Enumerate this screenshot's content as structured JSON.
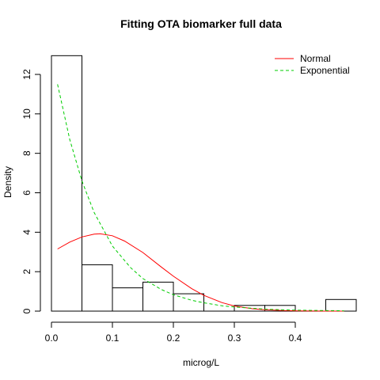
{
  "chart_data": {
    "type": "histogram",
    "title": "Fitting OTA biomarker full data",
    "xlabel": "microg/L",
    "ylabel": "Density",
    "xlim": [
      0.0,
      0.5
    ],
    "ylim": [
      0,
      13
    ],
    "grid": false,
    "x_ticks": [
      "0.0",
      "0.1",
      "0.2",
      "0.3",
      "0.4"
    ],
    "x_tick_values": [
      0.0,
      0.1,
      0.2,
      0.3,
      0.4
    ],
    "y_ticks": [
      "0",
      "2",
      "4",
      "6",
      "8",
      "10",
      "12"
    ],
    "y_tick_values": [
      0,
      2,
      4,
      6,
      8,
      10,
      12
    ],
    "bins": [
      {
        "x0": 0.0,
        "x1": 0.05,
        "density": 12.95
      },
      {
        "x0": 0.05,
        "x1": 0.1,
        "density": 2.35
      },
      {
        "x0": 0.1,
        "x1": 0.15,
        "density": 1.18
      },
      {
        "x0": 0.15,
        "x1": 0.2,
        "density": 1.47
      },
      {
        "x0": 0.2,
        "x1": 0.25,
        "density": 0.88
      },
      {
        "x0": 0.25,
        "x1": 0.3,
        "density": 0.0
      },
      {
        "x0": 0.3,
        "x1": 0.35,
        "density": 0.29
      },
      {
        "x0": 0.35,
        "x1": 0.4,
        "density": 0.29
      },
      {
        "x0": 0.4,
        "x1": 0.45,
        "density": 0.0
      },
      {
        "x0": 0.45,
        "x1": 0.5,
        "density": 0.59
      }
    ],
    "series": [
      {
        "name": "Normal",
        "color": "#ff0000",
        "dash": "solid",
        "x": [
          0.01,
          0.03,
          0.05,
          0.07,
          0.08,
          0.1,
          0.12,
          0.15,
          0.18,
          0.2,
          0.23,
          0.25,
          0.28,
          0.3,
          0.33,
          0.35,
          0.38,
          0.4,
          0.43,
          0.45,
          0.48
        ],
        "values": [
          3.15,
          3.5,
          3.76,
          3.9,
          3.92,
          3.82,
          3.55,
          2.97,
          2.24,
          1.77,
          1.14,
          0.8,
          0.43,
          0.26,
          0.12,
          0.07,
          0.03,
          0.015,
          0.005,
          0.002,
          0.0005
        ]
      },
      {
        "name": "Exponential",
        "color": "#00cc00",
        "dash": "dashed",
        "x": [
          0.01,
          0.03,
          0.05,
          0.07,
          0.1,
          0.13,
          0.15,
          0.18,
          0.2,
          0.23,
          0.25,
          0.28,
          0.3,
          0.35,
          0.4,
          0.45,
          0.48
        ],
        "values": [
          11.5,
          8.7,
          6.6,
          5.0,
          3.3,
          2.2,
          1.65,
          1.1,
          0.83,
          0.55,
          0.42,
          0.27,
          0.21,
          0.1,
          0.05,
          0.027,
          0.018
        ]
      }
    ],
    "legend": {
      "position": "top-right"
    }
  }
}
